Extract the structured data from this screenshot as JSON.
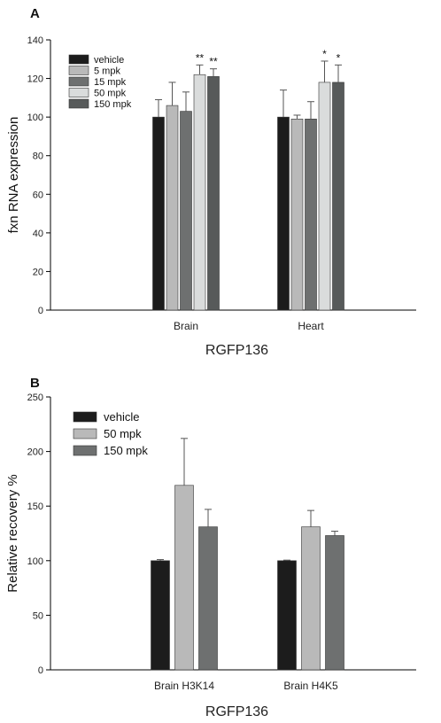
{
  "chart_data": [
    {
      "panel_label": "A",
      "type": "bar",
      "ylabel": "fxn RNA expression",
      "xlabel": "RGFP136",
      "ylim": [
        0,
        140
      ],
      "yticks": [
        0,
        20,
        40,
        60,
        80,
        100,
        120,
        140
      ],
      "categories": [
        "Brain",
        "Heart"
      ],
      "legend_position": "top-left",
      "series": [
        {
          "name": "vehicle",
          "color": "#1c1c1c",
          "values": [
            100,
            100
          ],
          "errors": [
            9,
            14
          ],
          "significance": [
            "",
            ""
          ]
        },
        {
          "name": "5 mpk",
          "color": "#b9b9b9",
          "values": [
            106,
            99
          ],
          "errors": [
            12,
            2
          ],
          "significance": [
            "",
            ""
          ]
        },
        {
          "name": "15 mpk",
          "color": "#6e7070",
          "values": [
            103,
            99
          ],
          "errors": [
            10,
            9
          ],
          "significance": [
            "",
            ""
          ]
        },
        {
          "name": "50 mpk",
          "color": "#dadcdc",
          "values": [
            122,
            118
          ],
          "errors": [
            5,
            11
          ],
          "significance": [
            "**",
            "*"
          ]
        },
        {
          "name": "150 mpk",
          "color": "#575a5a",
          "values": [
            121,
            118
          ],
          "errors": [
            4,
            9
          ],
          "significance": [
            "**",
            "*"
          ]
        }
      ]
    },
    {
      "panel_label": "B",
      "type": "bar",
      "ylabel": "Relative recovery %",
      "xlabel": "RGFP136",
      "ylim": [
        0,
        250
      ],
      "yticks": [
        0,
        50,
        100,
        150,
        200,
        250
      ],
      "categories": [
        "Brain H3K14",
        "Brain H4K5"
      ],
      "legend_position": "top-left",
      "series": [
        {
          "name": "vehicle",
          "color": "#1c1c1c",
          "values": [
            100,
            100
          ],
          "errors": [
            1,
            0.5
          ]
        },
        {
          "name": "50 mpk",
          "color": "#b9b9b9",
          "values": [
            169,
            131
          ],
          "errors": [
            43,
            15
          ]
        },
        {
          "name": "150 mpk",
          "color": "#6e7070",
          "values": [
            131,
            123
          ],
          "errors": [
            16,
            4
          ]
        }
      ]
    }
  ]
}
